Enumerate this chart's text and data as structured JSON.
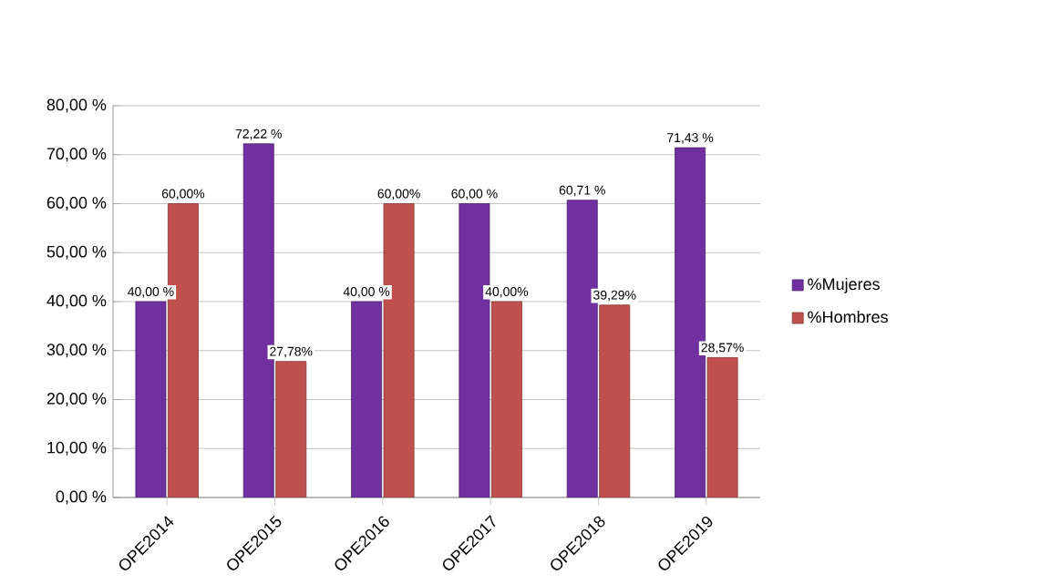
{
  "chart_data": {
    "type": "bar",
    "categories": [
      "OPE2014",
      "OPE2015",
      "OPE2016",
      "OPE2017",
      "OPE2018",
      "OPE2019"
    ],
    "series": [
      {
        "name": "%Mujeres",
        "color": "#7030a0",
        "values": [
          40.0,
          72.22,
          40.0,
          60.0,
          60.71,
          71.43
        ],
        "value_labels": [
          "40,00 %",
          "72,22 %",
          "40,00 %",
          "60,00 %",
          "60,71 %",
          "71,43 %"
        ]
      },
      {
        "name": "%Hombres",
        "color": "#c0504d",
        "values": [
          60.0,
          27.78,
          60.0,
          40.0,
          39.29,
          28.57
        ],
        "value_labels": [
          "60,00%",
          "27,78%",
          "60,00%",
          "40,00%",
          "39,29%",
          "28,57%"
        ]
      }
    ],
    "ylim": [
      0,
      80
    ],
    "yticks": [
      {
        "value": 0,
        "label": "0,00 %"
      },
      {
        "value": 10,
        "label": "10,00 %"
      },
      {
        "value": 20,
        "label": "20,00 %"
      },
      {
        "value": 30,
        "label": "30,00 %"
      },
      {
        "value": 40,
        "label": "40,00 %"
      },
      {
        "value": 50,
        "label": "50,00 %"
      },
      {
        "value": 60,
        "label": "60,00 %"
      },
      {
        "value": 70,
        "label": "70,00 %"
      },
      {
        "value": 80,
        "label": "80,00 %"
      }
    ],
    "grid": "y",
    "legend": "right"
  }
}
